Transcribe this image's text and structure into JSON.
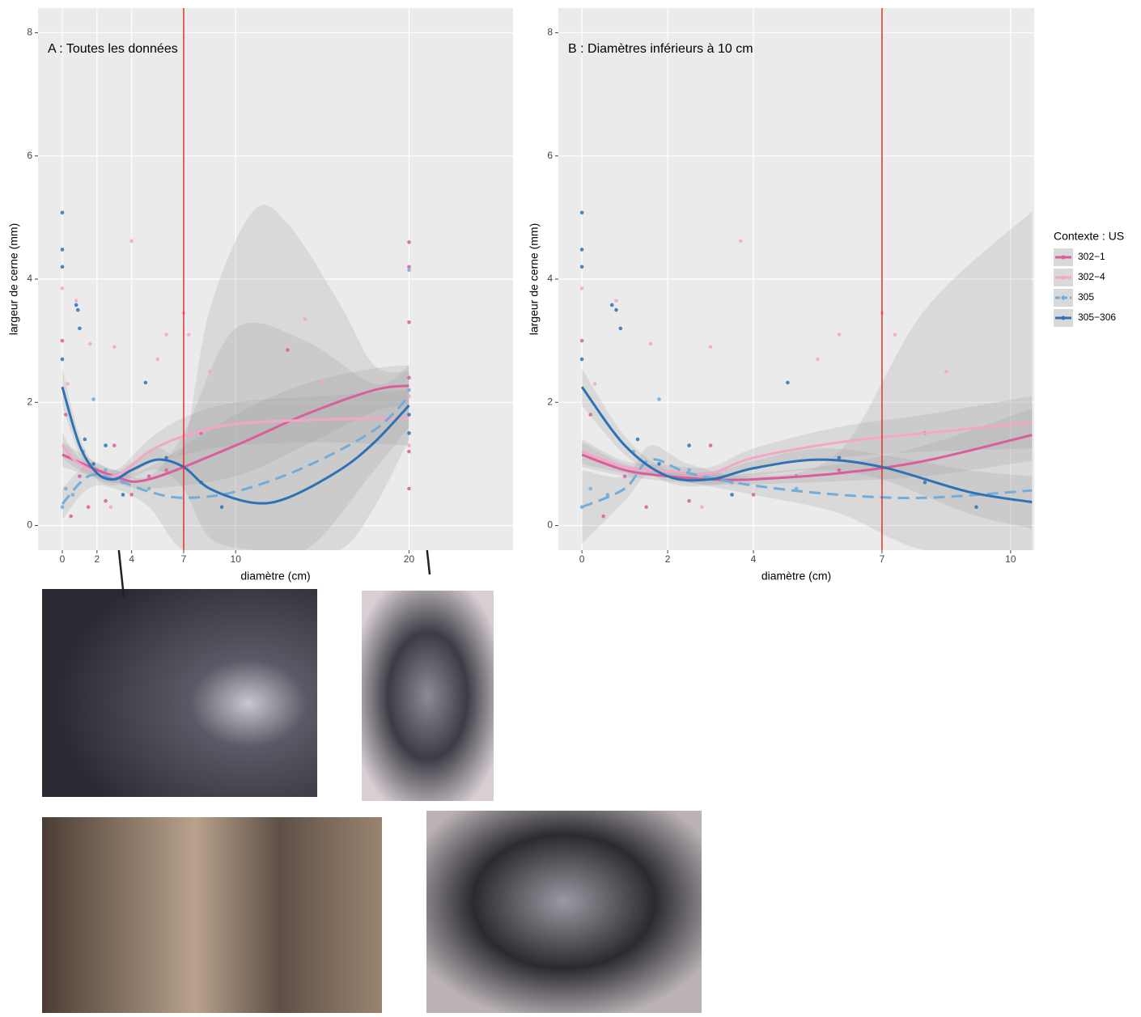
{
  "chart_data": [
    {
      "type": "line",
      "title": "A : Toutes les données",
      "xlabel": "diamètre (cm)",
      "ylabel": "largeur de cerne (mm)",
      "xlim": [
        -1.4,
        26
      ],
      "ylim": [
        -0.4,
        8.4
      ],
      "xticks": [
        0,
        2,
        4,
        7,
        10,
        20
      ],
      "yticks": [
        0,
        2,
        4,
        6,
        8
      ],
      "grid": true,
      "vline": 7,
      "vline_color": "#e0302a",
      "series": [
        {
          "color": "#dc5d9c",
          "dash": false,
          "x": [
            0,
            3,
            5,
            10,
            14,
            18,
            20
          ],
          "values": [
            1.15,
            0.8,
            0.75,
            1.3,
            1.8,
            2.2,
            2.27
          ],
          "lower": [
            0.95,
            0.7,
            0.6,
            0.8,
            1.3,
            1.85,
            1.95
          ],
          "upper": [
            1.35,
            0.9,
            0.95,
            1.8,
            2.3,
            2.55,
            2.6
          ],
          "points_x": [
            0,
            0.2,
            0.5,
            1,
            1.5,
            2.5,
            3,
            4,
            5,
            6,
            8,
            13,
            20,
            20,
            20,
            20,
            20,
            20
          ],
          "points_y": [
            3.0,
            1.8,
            0.15,
            0.8,
            0.3,
            0.4,
            1.3,
            0.5,
            0.8,
            0.9,
            1.5,
            2.85,
            4.6,
            4.2,
            3.3,
            2.4,
            1.2,
            0.6
          ]
        },
        {
          "color": "#f4a6c8",
          "dash": false,
          "x": [
            0,
            1,
            3,
            5,
            7,
            10,
            15,
            20
          ],
          "values": [
            1.3,
            1.0,
            0.8,
            1.2,
            1.45,
            1.65,
            1.72,
            1.75
          ],
          "lower": [
            1.1,
            0.9,
            0.7,
            1.0,
            1.15,
            1.3,
            1.35,
            1.3
          ],
          "upper": [
            1.5,
            1.1,
            0.9,
            1.4,
            1.75,
            2.0,
            2.1,
            2.2
          ],
          "points_x": [
            0,
            0.3,
            0.8,
            1.6,
            2.8,
            3,
            4,
            5.5,
            6,
            7,
            7.3,
            8.5,
            14,
            15,
            20,
            20
          ],
          "points_y": [
            3.85,
            2.3,
            3.65,
            2.95,
            0.3,
            2.9,
            4.62,
            2.7,
            3.1,
            3.45,
            3.1,
            2.5,
            3.35,
            2.35,
            2.1,
            1.3
          ]
        },
        {
          "color": "#72acd9",
          "dash": true,
          "x": [
            0,
            1.5,
            3,
            5,
            7,
            10,
            14,
            18,
            20
          ],
          "values": [
            0.35,
            0.8,
            0.75,
            0.55,
            0.45,
            0.55,
            0.95,
            1.55,
            2.1
          ],
          "lower": [
            0.1,
            0.6,
            0.6,
            0.3,
            -0.4,
            -0.4,
            -0.4,
            0.9,
            1.6
          ],
          "upper": [
            0.6,
            1.0,
            0.9,
            0.8,
            1.5,
            3.2,
            3.0,
            2.3,
            2.6
          ],
          "points_x": [
            0,
            0.2,
            0.6,
            1.2,
            1.8,
            2.5,
            3.5,
            5,
            20,
            20
          ],
          "points_y": [
            0.3,
            0.6,
            0.5,
            1.2,
            2.05,
            0.9,
            0.7,
            0.6,
            4.15,
            2.2
          ]
        },
        {
          "color": "#2c72b5",
          "dash": false,
          "x": [
            0,
            1,
            2,
            3,
            4,
            5.5,
            7,
            8.5,
            11,
            13,
            16,
            18,
            20
          ],
          "values": [
            2.25,
            1.3,
            0.85,
            0.75,
            0.9,
            1.07,
            0.95,
            0.6,
            0.37,
            0.45,
            0.9,
            1.35,
            1.95
          ],
          "lower": [
            1.95,
            1.15,
            0.75,
            0.65,
            0.78,
            0.9,
            0.6,
            -0.2,
            -0.4,
            -0.4,
            -0.4,
            0.3,
            1.4
          ],
          "upper": [
            2.55,
            1.45,
            0.95,
            0.85,
            1.02,
            1.25,
            1.3,
            3.5,
            5.1,
            4.9,
            3.6,
            2.6,
            2.5
          ],
          "points_x": [
            0,
            0,
            0,
            0,
            0.8,
            0.9,
            1,
            1.3,
            1.8,
            2.5,
            3.5,
            4.8,
            6,
            8,
            9.2,
            20,
            20
          ],
          "points_y": [
            5.08,
            4.48,
            4.2,
            2.7,
            3.58,
            3.5,
            3.2,
            1.4,
            1.0,
            1.3,
            0.5,
            2.32,
            1.1,
            0.7,
            0.3,
            1.8,
            1.5
          ]
        }
      ]
    },
    {
      "type": "line",
      "title": "B : Diamètres inférieurs à 10 cm",
      "xlabel": "diamètre (cm)",
      "ylabel": "largeur de cerne (mm)",
      "xlim": [
        -0.55,
        10.55
      ],
      "ylim": [
        -0.4,
        8.4
      ],
      "xticks": [
        0,
        2,
        4,
        7,
        10
      ],
      "yticks": [
        0,
        2,
        4,
        6,
        8
      ],
      "grid": true,
      "vline": 7,
      "vline_color": "#e0302a",
      "legend_title": "Contexte : US",
      "legend": "right",
      "series": [
        {
          "name": "302−1",
          "color": "#dc5d9c",
          "dash": false,
          "x": [
            0,
            1,
            2,
            3,
            4,
            6,
            8,
            10.5
          ],
          "values": [
            1.15,
            0.9,
            0.8,
            0.75,
            0.75,
            0.85,
            1.05,
            1.47
          ],
          "lower": [
            0.95,
            0.8,
            0.72,
            0.67,
            0.67,
            0.72,
            0.8,
            1.05
          ],
          "upper": [
            1.35,
            1.0,
            0.88,
            0.83,
            0.85,
            1.0,
            1.3,
            1.9
          ],
          "points_x": [
            0,
            0.2,
            0.5,
            1,
            1.5,
            2.5,
            3,
            4,
            5,
            6,
            8
          ],
          "points_y": [
            3.0,
            1.8,
            0.15,
            0.8,
            0.3,
            0.4,
            1.3,
            0.5,
            0.8,
            0.9,
            1.5
          ]
        },
        {
          "name": "302−4",
          "color": "#f4a6c8",
          "dash": false,
          "x": [
            0,
            1,
            2,
            3,
            4,
            6,
            8,
            10.5
          ],
          "values": [
            1.2,
            0.95,
            0.88,
            0.85,
            1.1,
            1.35,
            1.5,
            1.67
          ],
          "lower": [
            1.0,
            0.85,
            0.78,
            0.75,
            0.95,
            1.1,
            1.2,
            1.25
          ],
          "upper": [
            1.4,
            1.05,
            0.98,
            0.95,
            1.25,
            1.6,
            1.8,
            2.1
          ],
          "points_x": [
            0,
            0.3,
            0.8,
            1.6,
            2.8,
            3,
            3.7,
            5.5,
            6,
            7,
            7.3,
            8.5
          ],
          "points_y": [
            3.85,
            2.3,
            3.65,
            2.95,
            0.3,
            2.9,
            4.62,
            2.7,
            3.1,
            3.45,
            3.1,
            2.5
          ]
        },
        {
          "name": "305",
          "color": "#72acd9",
          "dash": true,
          "x": [
            0,
            1,
            1.6,
            2.5,
            4,
            6,
            8,
            10.5
          ],
          "values": [
            0.3,
            0.6,
            1.07,
            0.85,
            0.65,
            0.5,
            0.45,
            0.57
          ],
          "lower": [
            -0.3,
            0.4,
            0.85,
            0.7,
            0.5,
            0.2,
            -0.4,
            -0.4
          ],
          "upper": [
            0.9,
            0.8,
            1.3,
            1.0,
            0.8,
            1.2,
            3.5,
            5.1
          ],
          "points_x": [
            0,
            0.2,
            0.6,
            1.2,
            1.8,
            2.5,
            3.5,
            5
          ],
          "points_y": [
            0.3,
            0.6,
            0.5,
            1.2,
            2.05,
            0.9,
            0.7,
            0.6
          ]
        },
        {
          "name": "305−306",
          "color": "#2c72b5",
          "dash": false,
          "x": [
            0,
            1,
            2,
            3,
            4,
            5.5,
            7,
            9,
            10.5
          ],
          "values": [
            2.25,
            1.3,
            0.8,
            0.75,
            0.93,
            1.07,
            0.95,
            0.55,
            0.38
          ],
          "lower": [
            1.95,
            1.15,
            0.7,
            0.65,
            0.8,
            0.9,
            0.75,
            0.2,
            -0.05
          ],
          "upper": [
            2.55,
            1.45,
            0.9,
            0.85,
            1.05,
            1.25,
            1.15,
            0.9,
            0.8
          ],
          "points_x": [
            0,
            0,
            0,
            0,
            0.7,
            0.8,
            0.9,
            1.3,
            1.8,
            2.5,
            3.5,
            4.8,
            6,
            8,
            9.2
          ],
          "points_y": [
            5.08,
            4.48,
            4.2,
            2.7,
            3.58,
            3.5,
            3.2,
            1.4,
            1.0,
            1.3,
            0.5,
            2.32,
            1.1,
            0.7,
            0.3
          ]
        }
      ]
    }
  ]
}
